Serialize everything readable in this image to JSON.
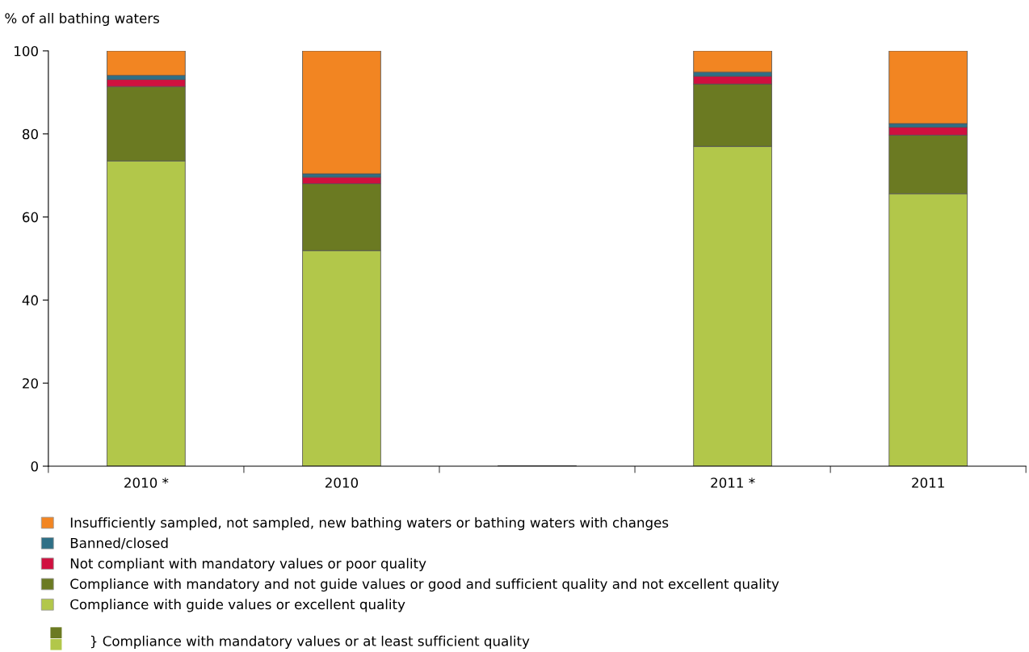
{
  "chart_data": {
    "type": "bar",
    "stacked": true,
    "ylabel": "% of all bathing waters",
    "categories": [
      "2010 *",
      "2010",
      null,
      "2011 *",
      "2011"
    ],
    "series": [
      {
        "name": "Compliance with guide values or excellent quality",
        "color": "#b2c74a",
        "values": [
          73.5,
          51.9,
          null,
          77.0,
          65.6
        ]
      },
      {
        "name": "Compliance with mandatory and not guide values or good and sufficient quality and not excellent quality",
        "color": "#6b7a22",
        "values": [
          17.9,
          16.1,
          null,
          15.0,
          14.1
        ]
      },
      {
        "name": "Not compliant with mandatory values or poor quality",
        "color": "#d0103f",
        "values": [
          1.7,
          1.6,
          null,
          1.9,
          1.9
        ]
      },
      {
        "name": "Banned/closed",
        "color": "#2e6f86",
        "values": [
          1.0,
          0.8,
          null,
          1.0,
          0.9
        ]
      },
      {
        "name": "Insufficiently sampled, not sampled, new bathing waters or bathing waters with changes",
        "color": "#f28522",
        "values": [
          5.9,
          29.6,
          null,
          5.1,
          17.5
        ]
      }
    ],
    "ylim": [
      0,
      100
    ],
    "yticks": [
      0,
      20,
      40,
      60,
      80,
      100
    ],
    "grid": false,
    "legend": "bottom",
    "annotations": [
      "} Compliance with mandatory values or at least sufficient quality"
    ]
  }
}
